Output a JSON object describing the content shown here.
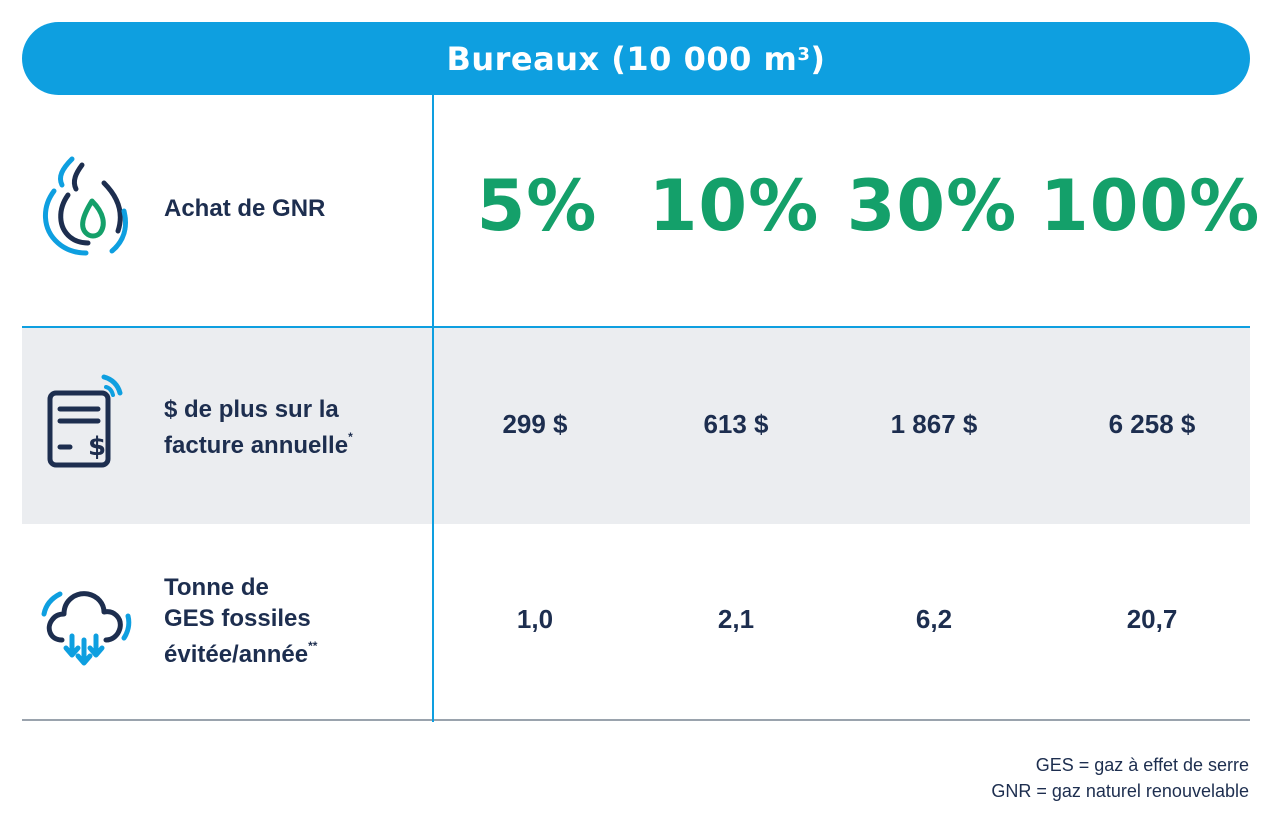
{
  "title": {
    "text": "Bureaux (10 000 m",
    "superscript": "3",
    "suffix": ")"
  },
  "colors": {
    "banner": "#0e9fe0",
    "accent_green": "#14a06a",
    "text_navy": "#1d2e4f",
    "row_shade": "#ebedf0"
  },
  "rows": [
    {
      "icon": "gas-flame-icon",
      "label_line1": "Achat de GNR",
      "values": [
        "5%",
        "10%",
        "30%",
        "100%"
      ]
    },
    {
      "icon": "invoice-dollar-icon",
      "label_line1": "$ de plus sur la",
      "label_line2": "facture annuelle",
      "label_mark": "*",
      "values": [
        "299 $",
        "613 $",
        "1 867 $",
        "6 258 $"
      ]
    },
    {
      "icon": "cloud-download-icon",
      "label_line1": "Tonne de",
      "label_line2": "GES fossiles",
      "label_line3": "évitée/année",
      "label_mark": "**",
      "values": [
        "1,0",
        "2,1",
        "6,2",
        "20,7"
      ]
    }
  ],
  "legend": {
    "line1": "GES = gaz à effet de serre",
    "line2": "GNR = gaz naturel renouvelable"
  }
}
